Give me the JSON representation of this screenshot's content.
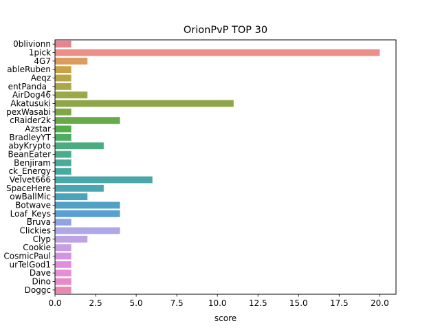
{
  "chart_data": {
    "type": "bar",
    "orientation": "horizontal",
    "title": "OrionPvP TOP 30",
    "xlabel": "score",
    "ylabel": "",
    "xlim": [
      0,
      21
    ],
    "xticks": [
      0.0,
      2.5,
      5.0,
      7.5,
      10.0,
      12.5,
      15.0,
      17.5,
      20.0
    ],
    "xtick_labels": [
      "0.0",
      "2.5",
      "5.0",
      "7.5",
      "10.0",
      "12.5",
      "15.0",
      "17.5",
      "20.0"
    ],
    "grid": false,
    "legend": "none",
    "categories": [
      "0blivionn",
      "1pick",
      "4G7",
      "ableRuben",
      "Aeqz",
      "entPanda_",
      "AirDog46",
      "Akatusuki",
      "pexWasabi",
      "cRaider2k",
      "Azstar",
      "BradleyYT",
      "abyKrypto",
      "BeanEater",
      "Benjiram",
      "ck_Energy",
      "VeIvet666",
      "SpaceHere",
      "owBallMic",
      "Botwave",
      "Loaf_Keys",
      "Bruva",
      "Clickies",
      "Clyp",
      "Cookie",
      "CosmicPaul",
      "urTelGod1",
      "Dave",
      "Dino",
      "Doggc"
    ],
    "values": [
      1,
      20,
      2,
      1,
      1,
      1,
      2,
      11,
      1,
      4,
      1,
      1,
      3,
      1,
      1,
      1,
      6,
      3,
      2,
      4,
      4,
      1,
      4,
      2,
      1,
      1,
      1,
      1,
      1,
      1
    ],
    "colors": [
      "#e8838f",
      "#ea9088",
      "#dd9b5e",
      "#c9a248",
      "#b9a548",
      "#aaa848",
      "#9ca948",
      "#8ea548",
      "#7ea748",
      "#68aa4a",
      "#55ad48",
      "#4cad63",
      "#4bac7f",
      "#4aab8d",
      "#4aaa98",
      "#48a9a1",
      "#49a7a9",
      "#4aa5b1",
      "#4ba3ba",
      "#50a1c5",
      "#5a9fd3",
      "#8fa4e0",
      "#aea8e6",
      "#bca3e4",
      "#c79de3",
      "#d494e1",
      "#df8fdd",
      "#e68ed3",
      "#e88bc2",
      "#e889b1"
    ]
  }
}
